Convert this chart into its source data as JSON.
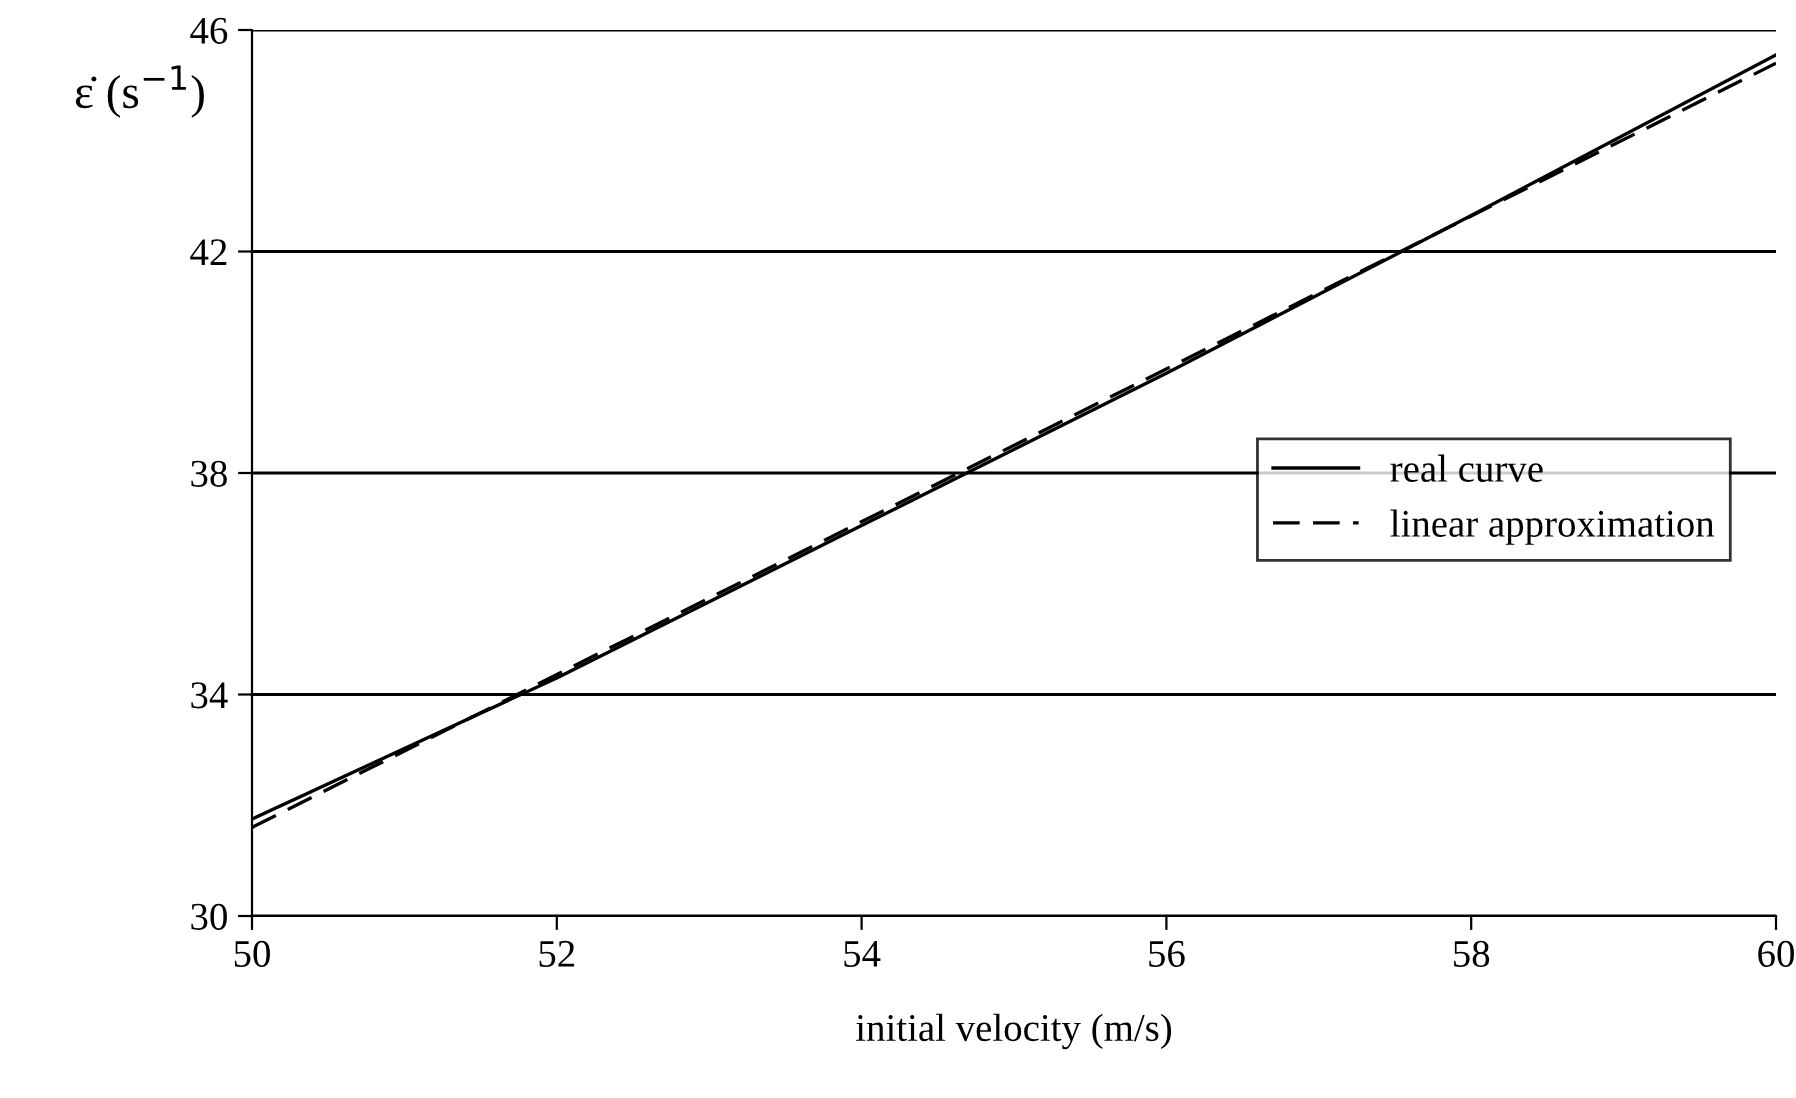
{
  "chart_data": {
    "type": "line",
    "xlabel": "initial velocity (m/s)",
    "ylabel": "ε̇ (s$^{−1}$)",
    "xlim": [
      50,
      60
    ],
    "ylim": [
      30,
      46
    ],
    "xticks": [
      50,
      52,
      54,
      56,
      58,
      60
    ],
    "yticks": [
      30,
      34,
      38,
      42,
      46
    ],
    "grid": "y",
    "legend": "right",
    "series": [
      {
        "name": "real curve",
        "color": "#000000",
        "line_style": "solid",
        "x": [
          50,
          52,
          54,
          56,
          58,
          60
        ],
        "values": [
          31.75,
          34.3,
          37.05,
          39.8,
          42.65,
          45.55
        ]
      },
      {
        "name": "linear approximation",
        "color": "#000000",
        "line_style": "dashed",
        "x": [
          50,
          60
        ],
        "values": [
          31.6,
          45.4
        ]
      }
    ]
  }
}
